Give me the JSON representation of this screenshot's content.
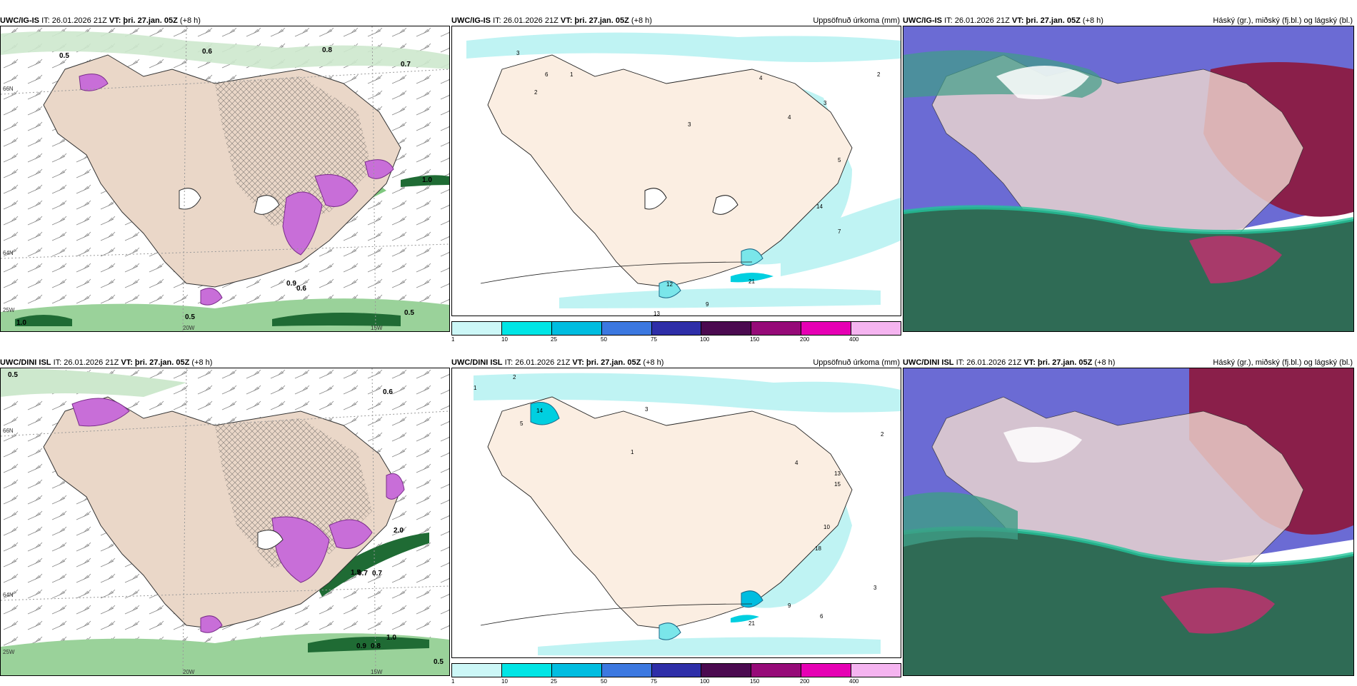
{
  "panels": {
    "top": {
      "left": {
        "model": "UWC/IG-IS",
        "it": "IT: 26.01.2026 21Z",
        "vt": "VT: þri. 27.jan. 05Z",
        "lead": "(+8 h)",
        "right": ""
      },
      "middle": {
        "model": "UWC/IG-IS",
        "it": "IT: 26.01.2026 21Z",
        "vt": "VT: þri. 27.jan. 05Z",
        "lead": "(+8 h)",
        "right": "Uppsöfnuð úrkoma (mm)"
      },
      "right": {
        "model": "UWC/IG-IS",
        "it": "IT: 26.01.2026 21Z",
        "vt": "VT: þri. 27.jan. 05Z",
        "lead": "(+8 h)",
        "right": "Háský (gr.), miðský (fj.bl.) og lágský (bl.)"
      }
    },
    "bottom": {
      "left": {
        "model": "UWC/DINI ISL",
        "it": "IT: 26.01.2026 21Z",
        "vt": "VT: þri. 27.jan. 05Z",
        "lead": "(+8 h)",
        "right": ""
      },
      "middle": {
        "model": "UWC/DINI ISL",
        "it": "IT: 26.01.2026 21Z",
        "vt": "VT: þri. 27.jan. 05Z",
        "lead": "(+8 h)",
        "right": "Uppsöfnuð úrkoma (mm)"
      },
      "right": {
        "model": "UWC/DINI ISL",
        "it": "IT: 26.01.2026 21Z",
        "vt": "VT: þri. 27.jan. 05Z",
        "lead": "(+8 h)",
        "right": "Háský (gr.), miðský (fj.bl.) og lágský (bl.)"
      }
    }
  },
  "axis_labels": {
    "lon_20w": "20W",
    "lon_15w": "15W",
    "lat_66n": "66N",
    "lat_64n": "64N",
    "lon_25w": "25W"
  },
  "colorbar": {
    "labels": [
      "1",
      "10",
      "25",
      "50",
      "75",
      "100",
      "150",
      "200",
      "400"
    ],
    "colors": [
      "#ccf7f7",
      "#00e5e5",
      "#00bde0",
      "#3c78e0",
      "#2e2ea8",
      "#4b0a50",
      "#960a78",
      "#e600b4",
      "#f5b4f0"
    ]
  },
  "precip_values_top": {
    "p1": "3",
    "p2": "2",
    "p3": "6",
    "p4": "1",
    "p5": "3",
    "p6": "4",
    "p7": "4",
    "p8": "3",
    "p9": "13",
    "p10": "7",
    "p11": "14",
    "p12": "21",
    "p13": "9",
    "p14": "12",
    "p15": "5",
    "p16": "2"
  },
  "precip_values_bottom": {
    "p1": "1",
    "p2": "2",
    "p3": "14",
    "p4": "3",
    "p5": "5",
    "p6": "1",
    "p7": "4",
    "p8": "2",
    "p9": "13",
    "p10": "15",
    "p11": "18",
    "p12": "21",
    "p13": "9",
    "p14": "6",
    "p15": "10",
    "p16": "3"
  },
  "wind_values_top": {
    "w1": "0.5",
    "w2": "0.6",
    "w3": "0.7",
    "w4": "0.8",
    "w5": "1.0",
    "w6": "0.9",
    "w7": "0.5",
    "w8": "0.5",
    "w9": "0.6",
    "w10": "1.0"
  },
  "wind_values_bottom": {
    "w1": "0.5",
    "w2": "0.6",
    "w3": "0.7",
    "w4": "2.0",
    "w5": "1.0",
    "w6": "0.9",
    "w7": "0.8",
    "w8": "0.5",
    "w9": "0.7",
    "w10": "1.5"
  }
}
